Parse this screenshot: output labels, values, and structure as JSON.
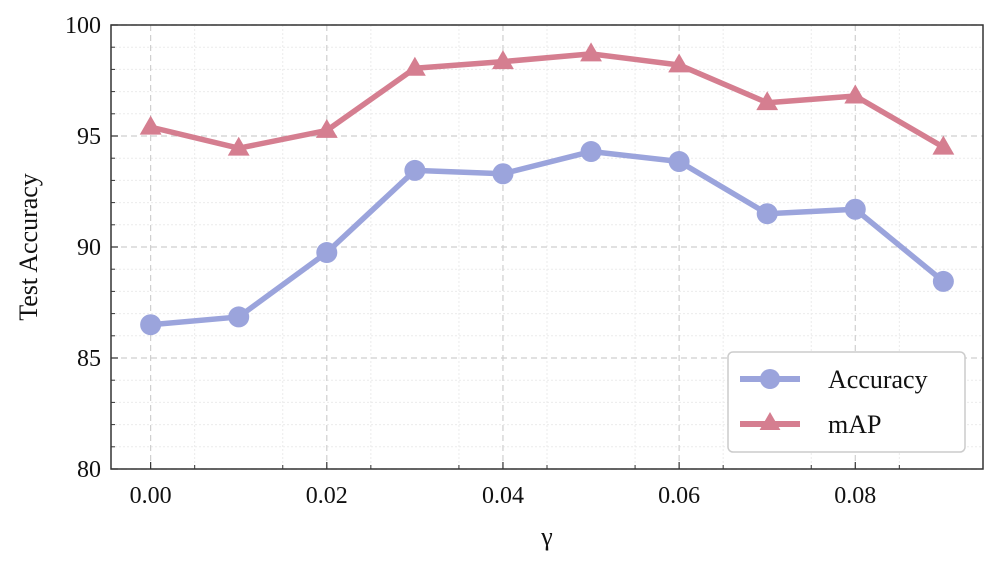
{
  "chart_data": {
    "type": "line",
    "xlabel": "γ",
    "ylabel": "Test Accuracy",
    "xlim": [
      -0.0045,
      0.0945
    ],
    "ylim": [
      80,
      100
    ],
    "xticks": [
      0.0,
      0.02,
      0.04,
      0.06,
      0.08
    ],
    "xtick_labels": [
      "0.00",
      "0.02",
      "0.04",
      "0.06",
      "0.08"
    ],
    "yticks": [
      80,
      85,
      90,
      95,
      100
    ],
    "ytick_labels": [
      "80",
      "85",
      "90",
      "95",
      "100"
    ],
    "x": [
      0.0,
      0.01,
      0.02,
      0.03,
      0.04,
      0.05,
      0.06,
      0.07,
      0.08,
      0.09
    ],
    "series": [
      {
        "name": "Accuracy",
        "marker": "circle",
        "color": "#9BA4DC",
        "values": [
          86.5,
          86.85,
          89.75,
          93.45,
          93.3,
          94.3,
          93.85,
          91.5,
          91.7,
          88.45
        ]
      },
      {
        "name": "mAP",
        "marker": "triangle",
        "color": "#D57E90",
        "values": [
          95.4,
          94.45,
          95.25,
          98.05,
          98.35,
          98.7,
          98.2,
          96.5,
          96.8,
          94.5
        ]
      }
    ],
    "grid": true,
    "legend_position": "lower-right"
  }
}
